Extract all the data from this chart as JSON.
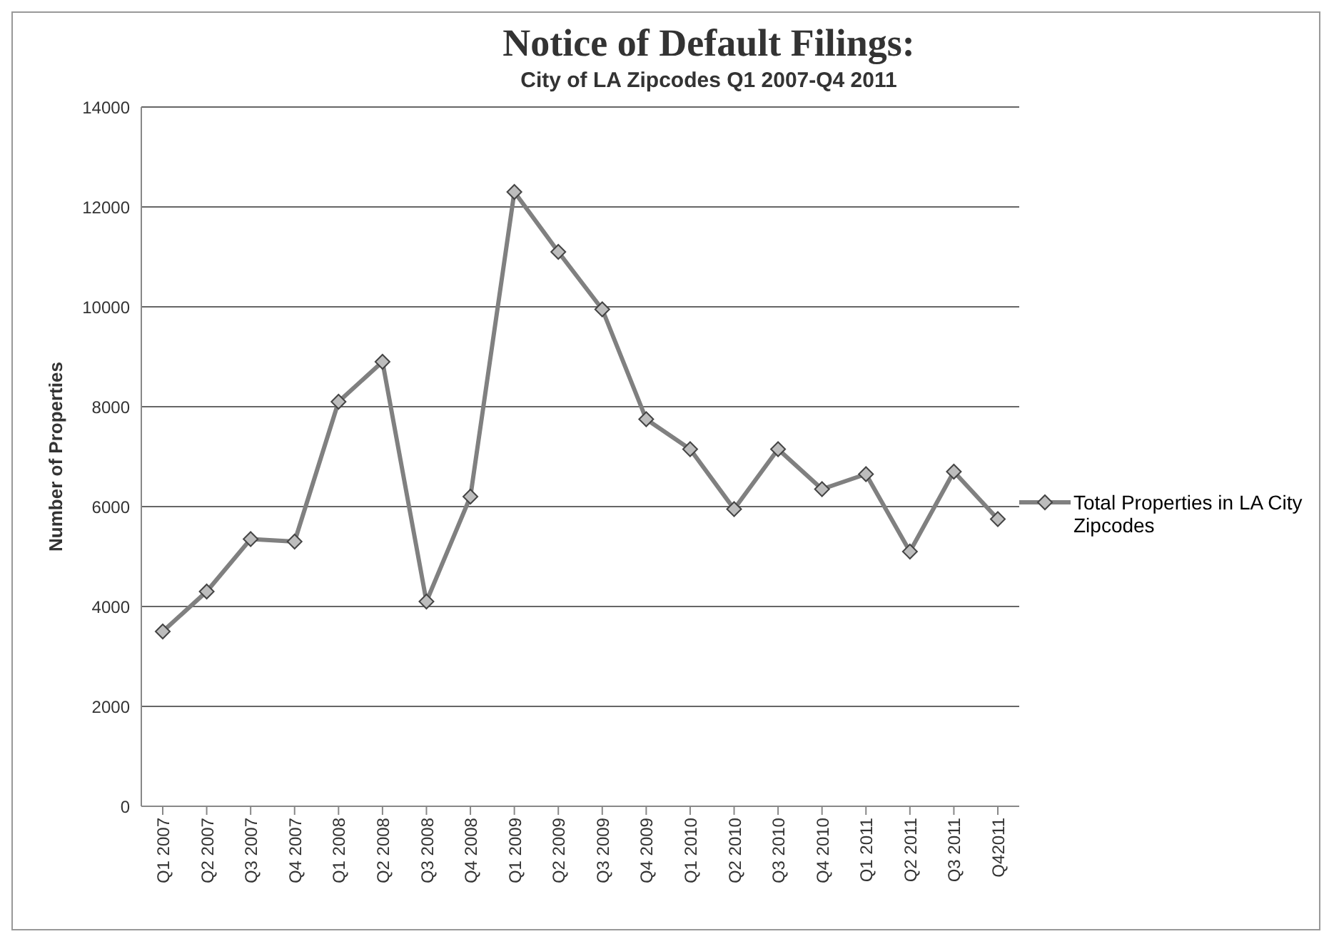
{
  "chart_data": {
    "type": "line",
    "title": "Notice of Default Filings:",
    "subtitle": "City of LA Zipcodes Q1 2007-Q4 2011",
    "ylabel": "Number of Properties",
    "categories": [
      "Q1 2007",
      "Q2 2007",
      "Q3 2007",
      "Q4 2007",
      "Q1 2008",
      "Q2 2008",
      "Q3 2008",
      "Q4 2008",
      "Q1 2009",
      "Q2 2009",
      "Q3 2009",
      "Q4 2009",
      "Q1 2010",
      "Q2 2010",
      "Q3 2010",
      "Q4 2010",
      "Q1 2011",
      "Q2 2011",
      "Q3 2011",
      "Q42011"
    ],
    "series": [
      {
        "name": "Total Properties in LA City Zipcodes",
        "color": "#808080",
        "values": [
          3500,
          4300,
          5350,
          5300,
          8100,
          8900,
          4100,
          6200,
          12300,
          11100,
          9950,
          7750,
          7150,
          5950,
          7150,
          6350,
          6650,
          5100,
          6700,
          5750
        ]
      }
    ],
    "ylim": [
      0,
      14000
    ],
    "yticks": [
      0,
      2000,
      4000,
      6000,
      8000,
      10000,
      12000,
      14000
    ],
    "grid": "y",
    "legend": "right",
    "marker": "diamond",
    "line_style": "solid"
  }
}
